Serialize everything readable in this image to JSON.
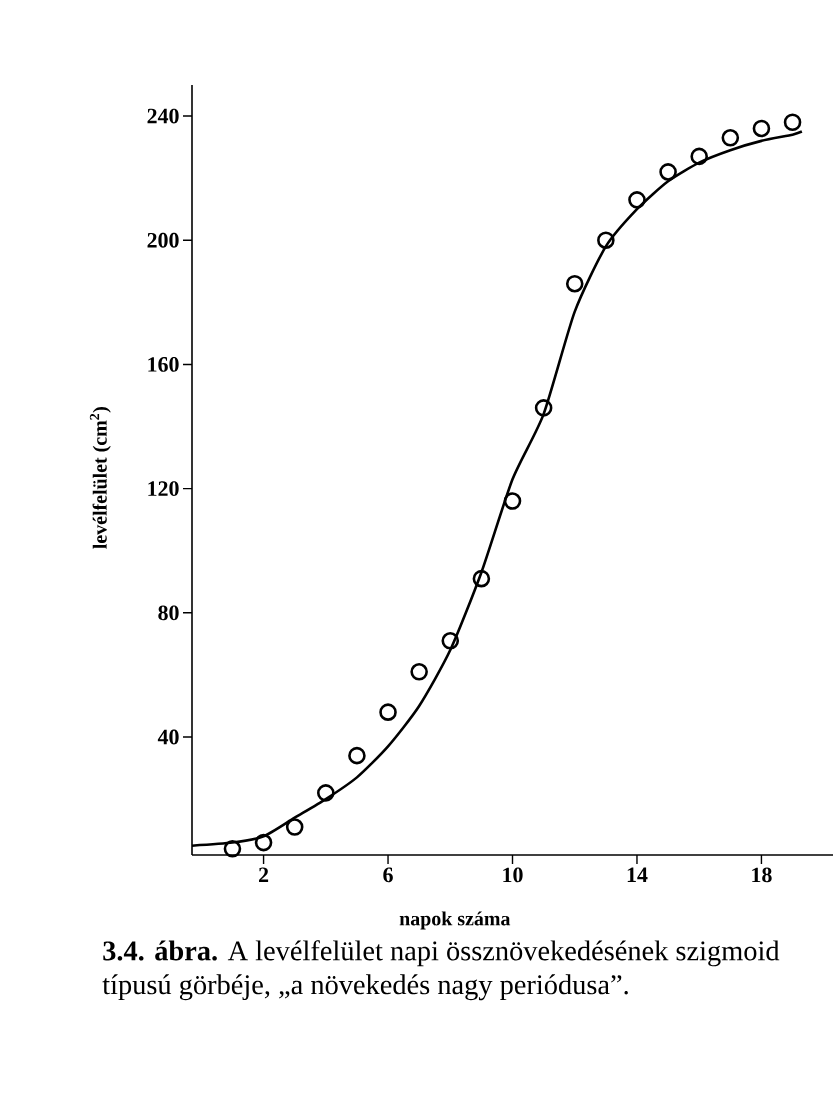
{
  "chart_data": {
    "type": "scatter",
    "xlabel": "napok száma",
    "ylabel": "levélfelület (cm$^{2}$)",
    "annotations": [
      "**3.4. ábra.** A levélfelület napi össznövekedésének szigmoid típusú görbéje, „a növekedés nagy periódusa”."
    ],
    "xlim": [
      -0.3,
      20.3
    ],
    "ylim": [
      2,
      250
    ],
    "xticks": [
      2,
      6,
      10,
      14,
      18
    ],
    "yticks": [
      40,
      80,
      120,
      160,
      200,
      240
    ],
    "series": [
      {
        "marker": "circle",
        "color": "#000000",
        "x": [
          1,
          2,
          3,
          4,
          5,
          6,
          7,
          8,
          9,
          10,
          11,
          12,
          13,
          14,
          15,
          16,
          17,
          18,
          19
        ],
        "values": [
          4,
          6,
          11,
          22,
          34,
          48,
          61,
          71,
          91,
          116,
          146,
          186,
          200,
          213,
          222,
          227,
          233,
          236,
          238
        ]
      },
      {
        "type": "line",
        "marker": "none",
        "color": "#000000",
        "x": [
          -0.3,
          1,
          2,
          3,
          4,
          5,
          6,
          7,
          8,
          9,
          10,
          11,
          12,
          13,
          14,
          15,
          16,
          17,
          18,
          19,
          19.3
        ],
        "values": [
          5,
          6,
          8,
          14,
          20,
          27,
          37,
          50,
          68,
          93,
          123,
          144,
          177,
          198,
          210,
          219,
          225,
          229,
          232,
          234,
          235
        ]
      }
    ]
  }
}
